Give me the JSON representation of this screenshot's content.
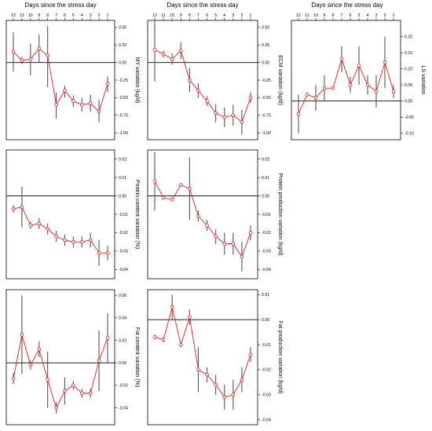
{
  "header_label": "Days since the stress day",
  "x_ticks": [
    "12",
    "11",
    "10",
    "9",
    "8",
    "7",
    "6",
    "5",
    "4",
    "3",
    "2",
    "1"
  ],
  "colors": {
    "line": "#e0201f",
    "marker": "#e0201f",
    "error_bar": "#555555",
    "zero_line": "#000000",
    "frame": "#000000"
  },
  "chart_data": [
    {
      "type": "line",
      "id": "my",
      "ylabel": "MY variation (kg/d)",
      "ylim": [
        -1.1,
        0.6
      ],
      "yticks": [
        0.5,
        0.25,
        0,
        -0.25,
        -0.5,
        -0.75,
        -1
      ],
      "ytick_labels": [
        "0.50",
        "0.25",
        "0.00",
        "-0.25",
        "-0.50",
        "-0.75",
        "-1.00"
      ],
      "x": [
        12,
        11,
        10,
        9,
        8,
        7,
        6,
        5,
        4,
        3,
        2,
        1
      ],
      "values": [
        0.15,
        0.03,
        0.05,
        0.2,
        0.1,
        -0.6,
        -0.4,
        -0.55,
        -0.6,
        -0.58,
        -0.7,
        -0.3
      ],
      "lower": [
        -0.13,
        -0.02,
        -0.18,
        0.0,
        -0.35,
        -0.8,
        -0.5,
        -0.63,
        -0.7,
        -0.7,
        -0.85,
        -0.42
      ],
      "upper": [
        0.43,
        0.08,
        0.27,
        0.4,
        0.52,
        -0.43,
        -0.33,
        -0.47,
        -0.5,
        -0.46,
        -0.53,
        -0.2
      ]
    },
    {
      "type": "line",
      "id": "ecm",
      "ylabel": "ECM variation (kg/d)",
      "ylim": [
        -1.1,
        0.6
      ],
      "yticks": [
        0.5,
        0.25,
        0,
        -0.25,
        -0.5,
        -0.75,
        -1
      ],
      "ytick_labels": [
        "0.50",
        "0.25",
        "0.00",
        "-0.25",
        "-0.50",
        "-0.75",
        "-1.00"
      ],
      "x": [
        12,
        11,
        10,
        9,
        8,
        7,
        6,
        5,
        4,
        3,
        2,
        1
      ],
      "values": [
        0.18,
        0.12,
        0.05,
        0.17,
        -0.25,
        -0.4,
        -0.55,
        -0.72,
        -0.78,
        -0.75,
        -0.85,
        -0.5
      ],
      "lower": [
        -0.27,
        0.07,
        -0.03,
        0.05,
        -0.42,
        -0.5,
        -0.62,
        -0.85,
        -0.92,
        -0.9,
        -1.03,
        -0.58
      ],
      "upper": [
        0.63,
        0.17,
        0.13,
        0.29,
        -0.08,
        -0.3,
        -0.48,
        -0.59,
        -0.64,
        -0.6,
        -0.67,
        -0.42
      ]
    },
    {
      "type": "line",
      "id": "ls",
      "ylabel": "LS variation",
      "ylim": [
        -0.12,
        0.25
      ],
      "yticks": [
        0.2,
        0.15,
        0.1,
        0.05,
        0,
        -0.05,
        -0.1
      ],
      "ytick_labels": [
        "0.20",
        "0.15",
        "0.10",
        "0.05",
        "0.00",
        "-0.05",
        "-0.10"
      ],
      "x": [
        12,
        11,
        10,
        9,
        8,
        7,
        6,
        5,
        4,
        3,
        2,
        1
      ],
      "values": [
        -0.04,
        0.02,
        0.01,
        0.04,
        0.04,
        0.13,
        0.05,
        0.11,
        0.05,
        0.03,
        0.12,
        0.03
      ],
      "lower": [
        -0.1,
        0.015,
        -0.03,
        0.0,
        0.035,
        0.09,
        0.025,
        0.05,
        0.02,
        -0.02,
        0.04,
        0.01
      ],
      "upper": [
        0.02,
        0.025,
        0.05,
        0.08,
        0.045,
        0.17,
        0.075,
        0.17,
        0.08,
        0.08,
        0.2,
        0.05
      ]
    },
    {
      "type": "line",
      "id": "protein_content",
      "ylabel": "Protein content variation (%)",
      "ylim": [
        -0.045,
        0.025
      ],
      "yticks": [
        0.02,
        0.01,
        0,
        -0.01,
        -0.02,
        -0.03,
        -0.04
      ],
      "ytick_labels": [
        "0.02",
        "0.01",
        "0.00",
        "-0.01",
        "-0.02",
        "-0.03",
        "-0.04"
      ],
      "x": [
        12,
        11,
        10,
        9,
        8,
        7,
        6,
        5,
        4,
        3,
        2,
        1
      ],
      "values": [
        -0.007,
        -0.006,
        -0.016,
        -0.015,
        -0.018,
        -0.022,
        -0.024,
        -0.025,
        -0.025,
        -0.024,
        -0.031,
        -0.031
      ],
      "lower": [
        -0.009,
        -0.017,
        -0.018,
        -0.018,
        -0.021,
        -0.025,
        -0.027,
        -0.028,
        -0.028,
        -0.028,
        -0.038,
        -0.035
      ],
      "upper": [
        -0.005,
        0.005,
        -0.014,
        -0.012,
        -0.015,
        -0.019,
        -0.021,
        -0.022,
        -0.022,
        -0.02,
        -0.024,
        -0.027
      ]
    },
    {
      "type": "line",
      "id": "protein_production",
      "ylabel": "Protein production variation (kg/d)",
      "ylim": [
        -0.045,
        0.025
      ],
      "yticks": [
        0.02,
        0.01,
        0,
        -0.01,
        -0.02,
        -0.03,
        -0.04
      ],
      "ytick_labels": [
        "0.02",
        "0.01",
        "0.00",
        "-0.01",
        "-0.02",
        "-0.03",
        "-0.04"
      ],
      "x": [
        12,
        11,
        10,
        9,
        8,
        7,
        6,
        5,
        4,
        3,
        2,
        1
      ],
      "values": [
        0.008,
        -0.001,
        -0.002,
        0.006,
        0.004,
        -0.011,
        -0.016,
        -0.022,
        -0.026,
        -0.026,
        -0.033,
        -0.02
      ],
      "lower": [
        -0.008,
        -0.002,
        -0.003,
        0.005,
        -0.013,
        -0.014,
        -0.019,
        -0.026,
        -0.032,
        -0.032,
        -0.041,
        -0.024
      ],
      "upper": [
        0.024,
        0.0,
        -0.001,
        0.007,
        0.021,
        -0.008,
        -0.013,
        -0.018,
        -0.02,
        -0.02,
        -0.025,
        -0.016
      ]
    },
    {
      "type": "line",
      "id": "fat_content",
      "ylabel": "Fat content variation (%)",
      "ylim": [
        -0.055,
        0.065
      ],
      "yticks": [
        0.06,
        0.04,
        0.02,
        0,
        -0.02,
        -0.04
      ],
      "ytick_labels": [
        "0.06",
        "0.04",
        "0.02",
        "0.00",
        "-0.02",
        "-0.04"
      ],
      "x": [
        12,
        11,
        10,
        9,
        8,
        7,
        6,
        5,
        4,
        3,
        2,
        1
      ],
      "values": [
        -0.014,
        0.025,
        -0.002,
        0.012,
        -0.015,
        -0.04,
        -0.025,
        -0.02,
        -0.027,
        -0.027,
        0.002,
        0.022
      ],
      "lower": [
        -0.019,
        -0.01,
        -0.006,
        0.005,
        -0.04,
        -0.045,
        -0.037,
        -0.024,
        -0.031,
        -0.031,
        -0.025,
        0.0
      ],
      "upper": [
        -0.009,
        0.06,
        0.002,
        0.019,
        0.01,
        -0.035,
        -0.013,
        -0.016,
        -0.023,
        -0.023,
        0.029,
        0.044
      ]
    },
    {
      "type": "line",
      "id": "fat_production",
      "ylabel": "Fat production variation (kg/d)",
      "ylim": [
        -0.042,
        0.012
      ],
      "yticks": [
        0.01,
        0,
        -0.01,
        -0.02,
        -0.03,
        -0.04
      ],
      "ytick_labels": [
        "0.01",
        "0.00",
        "-0.01",
        "-0.02",
        "-0.03",
        "-0.04"
      ],
      "x": [
        12,
        11,
        10,
        9,
        8,
        7,
        6,
        5,
        4,
        3,
        2,
        1
      ],
      "values": [
        -0.007,
        -0.008,
        0.005,
        -0.01,
        0.001,
        -0.02,
        -0.022,
        -0.026,
        -0.031,
        -0.03,
        -0.024,
        -0.014
      ],
      "lower": [
        -0.008,
        -0.009,
        0.0,
        -0.011,
        -0.002,
        -0.029,
        -0.025,
        -0.03,
        -0.036,
        -0.036,
        -0.029,
        -0.017
      ],
      "upper": [
        -0.006,
        -0.007,
        0.01,
        -0.009,
        0.004,
        -0.011,
        -0.019,
        -0.022,
        -0.026,
        -0.024,
        -0.019,
        -0.011
      ]
    }
  ]
}
